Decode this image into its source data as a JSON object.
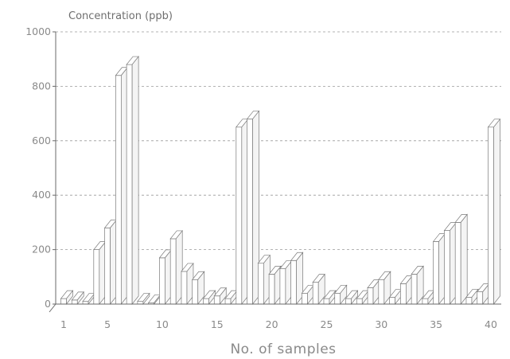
{
  "chart_data": {
    "type": "bar",
    "bar_style": "3d",
    "ylabel": "Concentration (ppb)",
    "xlabel": "No. of samples",
    "ylim": [
      0,
      1000
    ],
    "yticks": [
      0,
      200,
      400,
      600,
      800,
      1000
    ],
    "xlim": [
      1,
      40
    ],
    "xticks": [
      1,
      5,
      10,
      15,
      20,
      25,
      30,
      35,
      40
    ],
    "grid": true,
    "categories": [
      1,
      2,
      3,
      4,
      5,
      6,
      7,
      8,
      9,
      10,
      11,
      12,
      13,
      14,
      15,
      16,
      17,
      18,
      19,
      20,
      21,
      22,
      23,
      24,
      25,
      26,
      27,
      28,
      29,
      30,
      31,
      32,
      33,
      34,
      35,
      36,
      37,
      38,
      39,
      40
    ],
    "values": [
      20,
      15,
      10,
      200,
      280,
      840,
      880,
      10,
      5,
      170,
      240,
      120,
      90,
      20,
      30,
      20,
      650,
      680,
      150,
      110,
      130,
      160,
      40,
      80,
      20,
      40,
      20,
      20,
      60,
      90,
      25,
      75,
      110,
      20,
      230,
      270,
      300,
      25,
      45,
      650
    ],
    "colors": {
      "axis": "#6a6a6a",
      "grid": "#9a9a9a",
      "bar_edge": "#7a7a7a",
      "bar_fill": "#ffffff"
    }
  }
}
